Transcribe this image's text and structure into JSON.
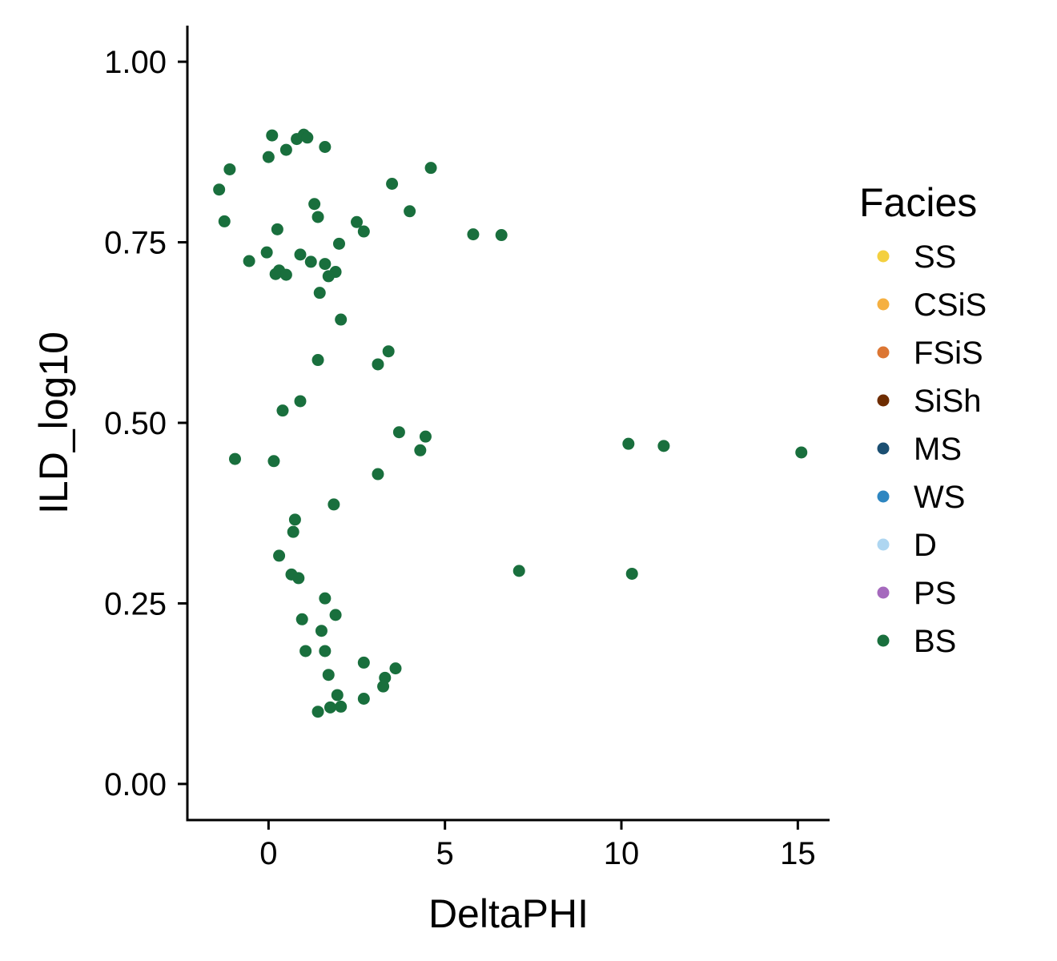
{
  "chart_data": {
    "type": "scatter",
    "title": "",
    "xlabel": "DeltaPHI",
    "ylabel": "ILD_log10",
    "xlim": [
      -2.3,
      15.9
    ],
    "ylim": [
      -0.05,
      1.05
    ],
    "x_ticks": [
      0,
      5,
      10,
      15
    ],
    "x_tick_labels": [
      "0",
      "5",
      "10",
      "15"
    ],
    "y_ticks": [
      0.0,
      0.25,
      0.5,
      0.75,
      1.0
    ],
    "y_tick_labels": [
      "0.00",
      "0.25",
      "0.50",
      "0.75",
      "1.00"
    ],
    "grid": false,
    "legend": {
      "title": "Facies",
      "placement": "right",
      "entries": [
        {
          "name": "SS",
          "color": "#F4D03F"
        },
        {
          "name": "CSiS",
          "color": "#F5B041"
        },
        {
          "name": "FSiS",
          "color": "#DC7633"
        },
        {
          "name": "SiSh",
          "color": "#6E2C00"
        },
        {
          "name": "MS",
          "color": "#1B4F72"
        },
        {
          "name": "WS",
          "color": "#2E86C1"
        },
        {
          "name": "D",
          "color": "#AED6F1"
        },
        {
          "name": "PS",
          "color": "#A569BD"
        },
        {
          "name": "BS",
          "color": "#196F3D"
        }
      ]
    },
    "series": [
      {
        "name": "BS",
        "color": "#196F3D",
        "points": [
          [
            0.1,
            0.898
          ],
          [
            0.8,
            0.893
          ],
          [
            1.0,
            0.899
          ],
          [
            1.1,
            0.895
          ],
          [
            1.6,
            0.882
          ],
          [
            0.5,
            0.878
          ],
          [
            0.0,
            0.868
          ],
          [
            -1.1,
            0.851
          ],
          [
            4.6,
            0.853
          ],
          [
            -1.4,
            0.823
          ],
          [
            3.5,
            0.831
          ],
          [
            1.3,
            0.803
          ],
          [
            4.0,
            0.793
          ],
          [
            1.4,
            0.785
          ],
          [
            -1.25,
            0.779
          ],
          [
            2.5,
            0.778
          ],
          [
            0.25,
            0.768
          ],
          [
            2.7,
            0.765
          ],
          [
            5.8,
            0.761
          ],
          [
            6.6,
            0.76
          ],
          [
            2.0,
            0.748
          ],
          [
            -0.05,
            0.736
          ],
          [
            0.9,
            0.733
          ],
          [
            -0.55,
            0.724
          ],
          [
            1.2,
            0.723
          ],
          [
            1.6,
            0.72
          ],
          [
            0.3,
            0.711
          ],
          [
            1.9,
            0.709
          ],
          [
            0.2,
            0.706
          ],
          [
            0.5,
            0.705
          ],
          [
            1.7,
            0.703
          ],
          [
            1.45,
            0.68
          ],
          [
            2.05,
            0.643
          ],
          [
            3.4,
            0.599
          ],
          [
            1.4,
            0.587
          ],
          [
            3.1,
            0.581
          ],
          [
            0.9,
            0.53
          ],
          [
            0.4,
            0.517
          ],
          [
            3.7,
            0.487
          ],
          [
            4.45,
            0.481
          ],
          [
            10.2,
            0.471
          ],
          [
            11.2,
            0.468
          ],
          [
            4.3,
            0.462
          ],
          [
            15.1,
            0.459
          ],
          [
            -0.95,
            0.45
          ],
          [
            0.15,
            0.447
          ],
          [
            3.1,
            0.429
          ],
          [
            1.85,
            0.387
          ],
          [
            0.75,
            0.366
          ],
          [
            0.7,
            0.349
          ],
          [
            0.3,
            0.316
          ],
          [
            7.1,
            0.295
          ],
          [
            10.3,
            0.291
          ],
          [
            0.65,
            0.29
          ],
          [
            0.85,
            0.285
          ],
          [
            1.6,
            0.257
          ],
          [
            1.9,
            0.234
          ],
          [
            0.95,
            0.228
          ],
          [
            1.5,
            0.212
          ],
          [
            1.05,
            0.184
          ],
          [
            1.6,
            0.184
          ],
          [
            2.7,
            0.168
          ],
          [
            3.6,
            0.16
          ],
          [
            1.7,
            0.151
          ],
          [
            3.3,
            0.147
          ],
          [
            3.25,
            0.135
          ],
          [
            1.95,
            0.123
          ],
          [
            2.7,
            0.118
          ],
          [
            1.75,
            0.106
          ],
          [
            2.05,
            0.107
          ],
          [
            1.4,
            0.1
          ]
        ]
      }
    ]
  }
}
